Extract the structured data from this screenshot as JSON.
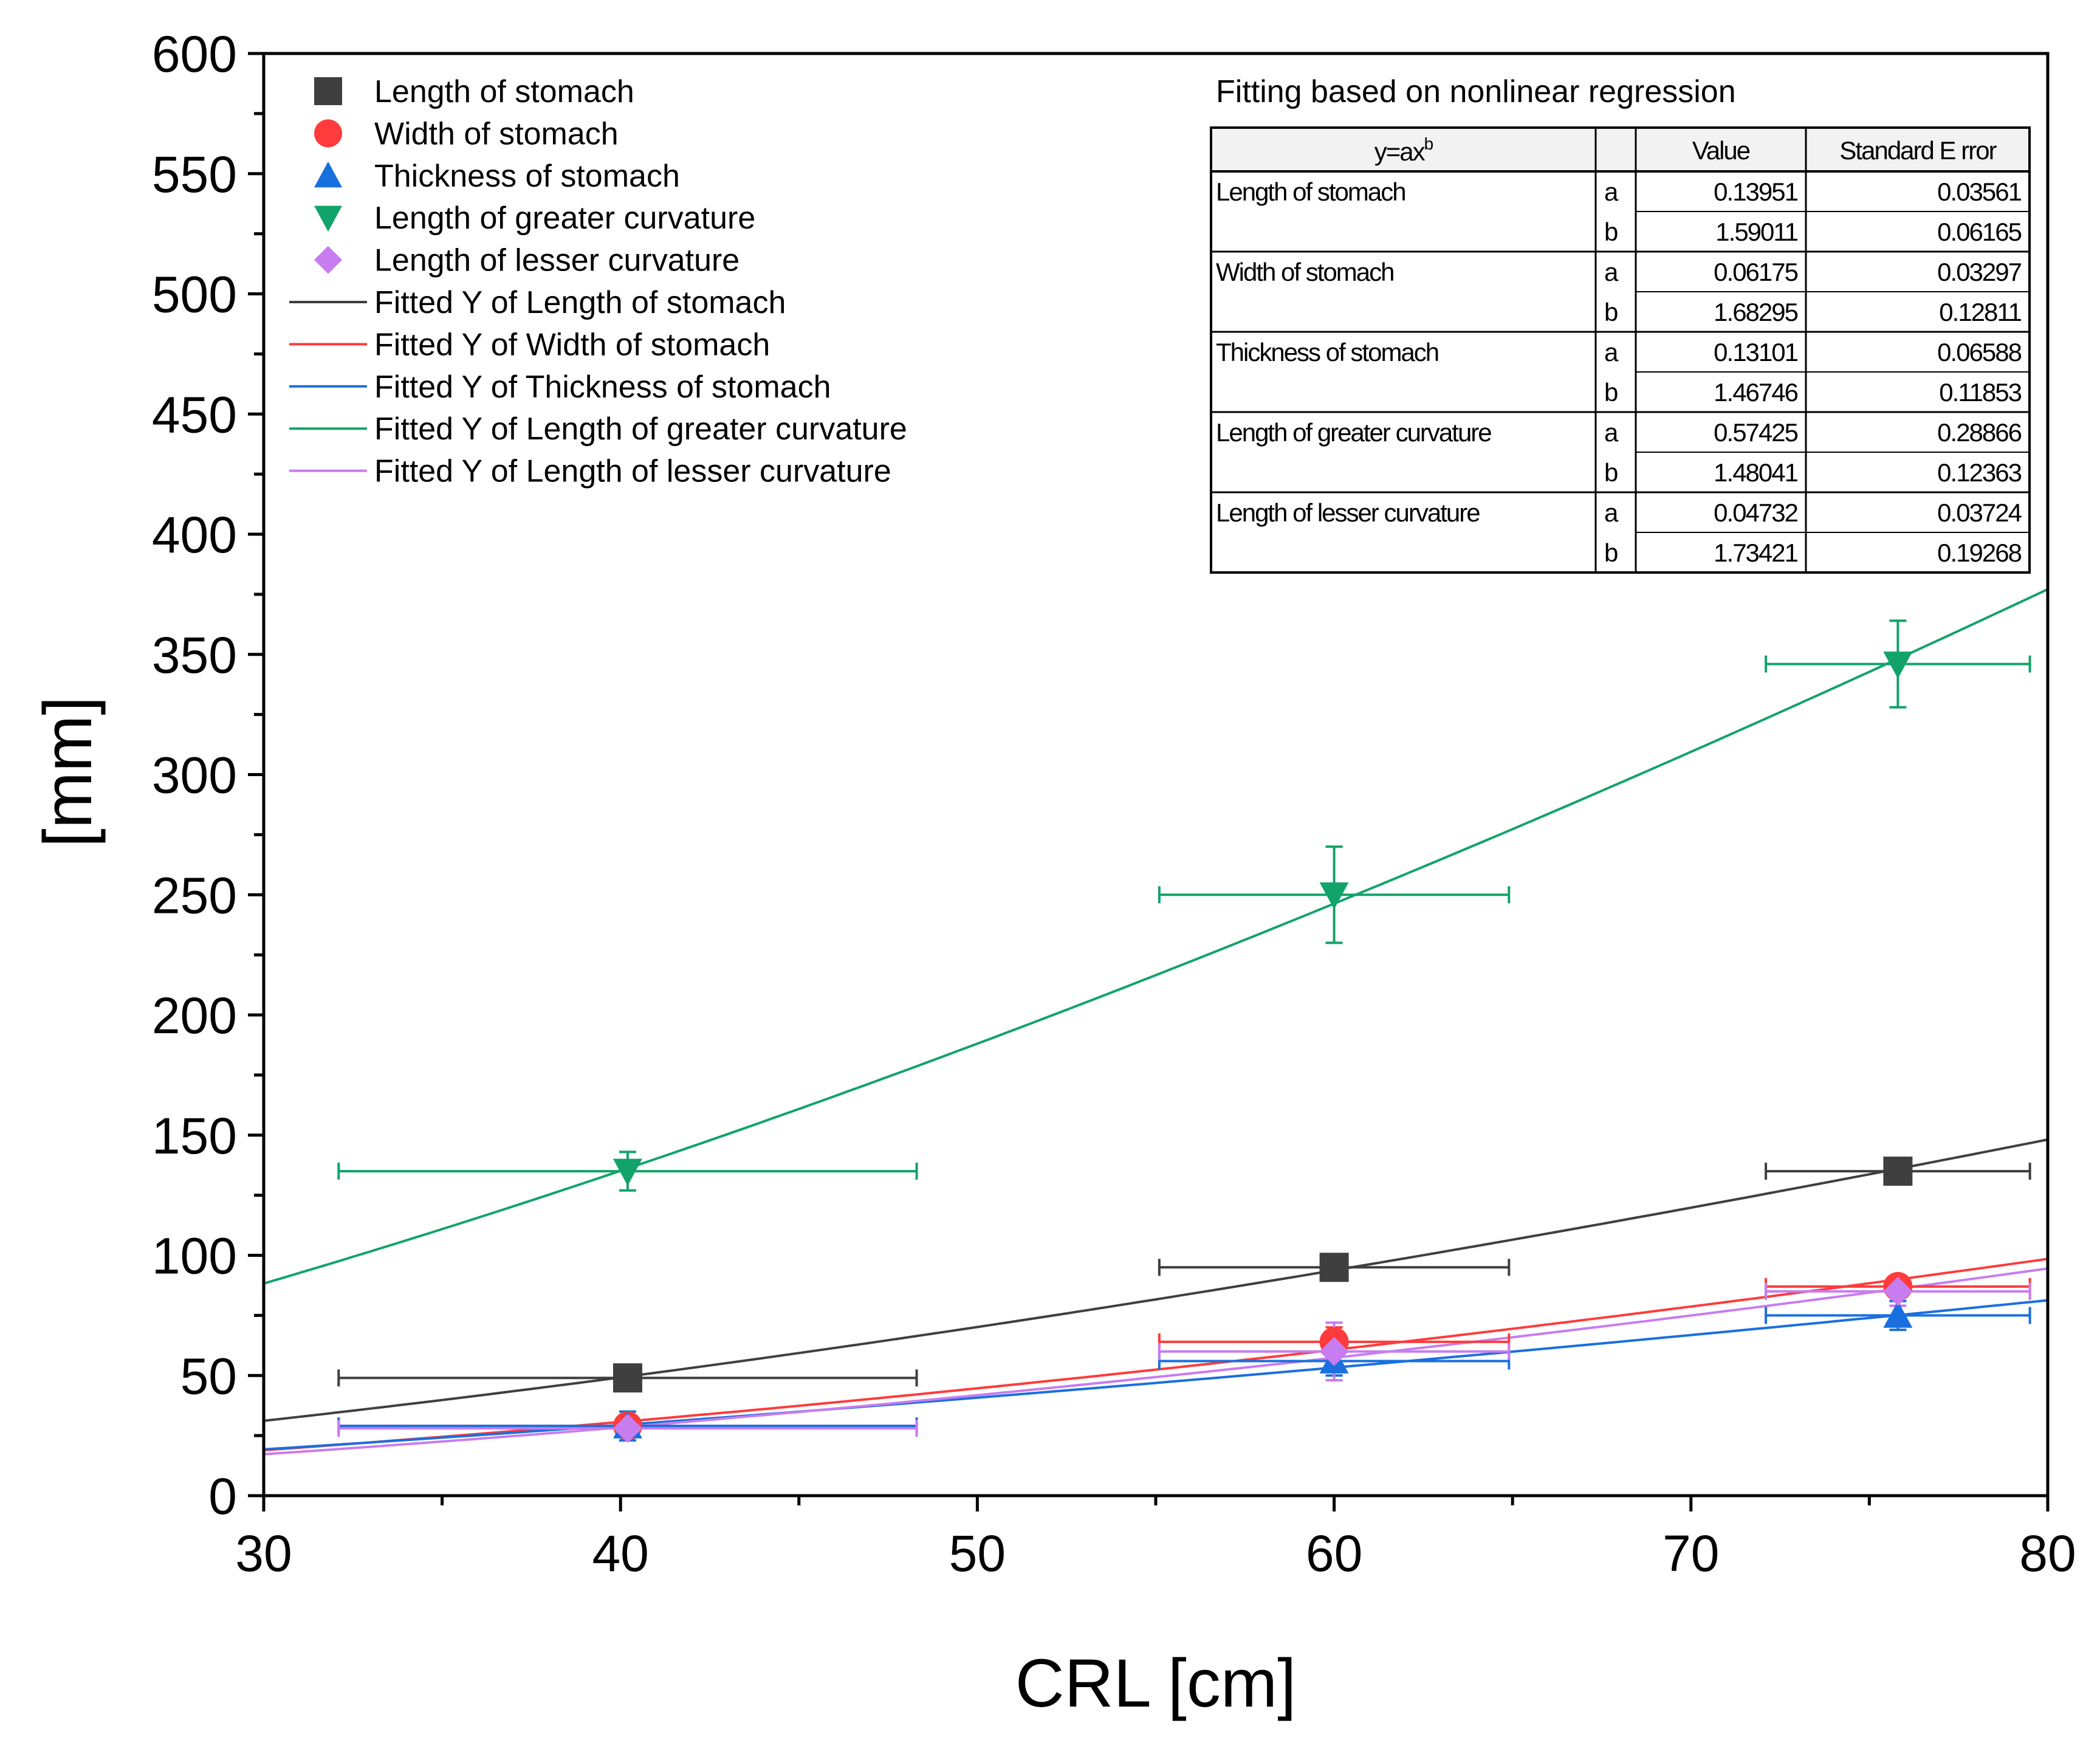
{
  "chart_data": {
    "type": "scatter",
    "title": "",
    "xlabel": "CRL [cm]",
    "ylabel": "[mm]",
    "xlim": [
      30,
      80
    ],
    "ylim": [
      0,
      600
    ],
    "x_ticks": [
      30,
      40,
      50,
      60,
      70,
      80
    ],
    "y_ticks": [
      0,
      50,
      100,
      150,
      200,
      250,
      300,
      350,
      400,
      450,
      500,
      550,
      600
    ],
    "grid": false,
    "legend_position": "top-left",
    "series": [
      {
        "name": "Length of stomach",
        "marker": "square",
        "color": "#3f3f3f",
        "points": [
          {
            "x": 40.2,
            "y": 49,
            "xerr": 8.1,
            "yerr": 2
          },
          {
            "x": 60.0,
            "y": 95,
            "xerr": 4.9,
            "yerr": 2
          },
          {
            "x": 75.8,
            "y": 135,
            "xerr": 3.7,
            "yerr": 2
          }
        ]
      },
      {
        "name": "Width of stomach",
        "marker": "circle",
        "color": "#ff3b3b",
        "points": [
          {
            "x": 40.2,
            "y": 29,
            "xerr": 8.1,
            "yerr": 3
          },
          {
            "x": 60.0,
            "y": 64,
            "xerr": 4.9,
            "yerr": 6
          },
          {
            "x": 75.8,
            "y": 87,
            "xerr": 3.7,
            "yerr": 4
          }
        ]
      },
      {
        "name": "Thickness of stomach",
        "marker": "triangle-up",
        "color": "#1a6fdf",
        "points": [
          {
            "x": 40.2,
            "y": 29,
            "xerr": 8.1,
            "yerr": 6
          },
          {
            "x": 60.0,
            "y": 56,
            "xerr": 4.9,
            "yerr": 6
          },
          {
            "x": 75.8,
            "y": 75,
            "xerr": 3.7,
            "yerr": 6
          }
        ]
      },
      {
        "name": "Length of greater curvature",
        "marker": "triangle-down",
        "color": "#12a36a",
        "points": [
          {
            "x": 40.2,
            "y": 135,
            "xerr": 8.1,
            "yerr": 8
          },
          {
            "x": 60.0,
            "y": 250,
            "xerr": 4.9,
            "yerr": 20
          },
          {
            "x": 75.8,
            "y": 346,
            "xerr": 3.7,
            "yerr": 18
          }
        ]
      },
      {
        "name": "Length of lesser curvature",
        "marker": "diamond",
        "color": "#c77cf0",
        "points": [
          {
            "x": 40.2,
            "y": 28,
            "xerr": 8.1,
            "yerr": 3
          },
          {
            "x": 60.0,
            "y": 60,
            "xerr": 4.9,
            "yerr": 12
          },
          {
            "x": 75.8,
            "y": 85,
            "xerr": 3.7,
            "yerr": 6
          }
        ]
      }
    ],
    "fits": [
      {
        "name": "Fitted Y of Length of stomach",
        "color": "#3f3f3f",
        "a": 0.13951,
        "b": 1.59011
      },
      {
        "name": "Fitted Y of Width of stomach",
        "color": "#ff3b3b",
        "a": 0.06175,
        "b": 1.68295
      },
      {
        "name": "Fitted Y of Thickness of stomach",
        "color": "#1a6fdf",
        "a": 0.13101,
        "b": 1.46746
      },
      {
        "name": "Fitted Y of Length of greater curvature",
        "color": "#12a36a",
        "a": 0.57425,
        "b": 1.48041
      },
      {
        "name": "Fitted Y of Length of lesser curvature",
        "color": "#c77cf0",
        "a": 0.04732,
        "b": 1.73421
      }
    ],
    "fit_table": {
      "title": "Fitting based on nonlinear regression",
      "equation_base": "y=ax",
      "equation_exp": "b",
      "col_value": "Value",
      "col_error": "Standard E rror",
      "rows": [
        {
          "label": "Length of stomach",
          "param": "a",
          "value": "0.13951",
          "error": "0.03561"
        },
        {
          "label": "",
          "param": "b",
          "value": "1.59011",
          "error": "0.06165"
        },
        {
          "label": "Width of stomach",
          "param": "a",
          "value": "0.06175",
          "error": "0.03297"
        },
        {
          "label": "",
          "param": "b",
          "value": "1.68295",
          "error": "0.12811"
        },
        {
          "label": "Thickness of stomach",
          "param": "a",
          "value": "0.13101",
          "error": "0.06588"
        },
        {
          "label": "",
          "param": "b",
          "value": "1.46746",
          "error": "0.11853"
        },
        {
          "label": "Length of greater curvature",
          "param": "a",
          "value": "0.57425",
          "error": "0.28866"
        },
        {
          "label": "",
          "param": "b",
          "value": "1.48041",
          "error": "0.12363"
        },
        {
          "label": "Length of lesser curvature",
          "param": "a",
          "value": "0.04732",
          "error": "0.03724"
        },
        {
          "label": "",
          "param": "b",
          "value": "1.73421",
          "error": "0.19268"
        }
      ]
    }
  }
}
